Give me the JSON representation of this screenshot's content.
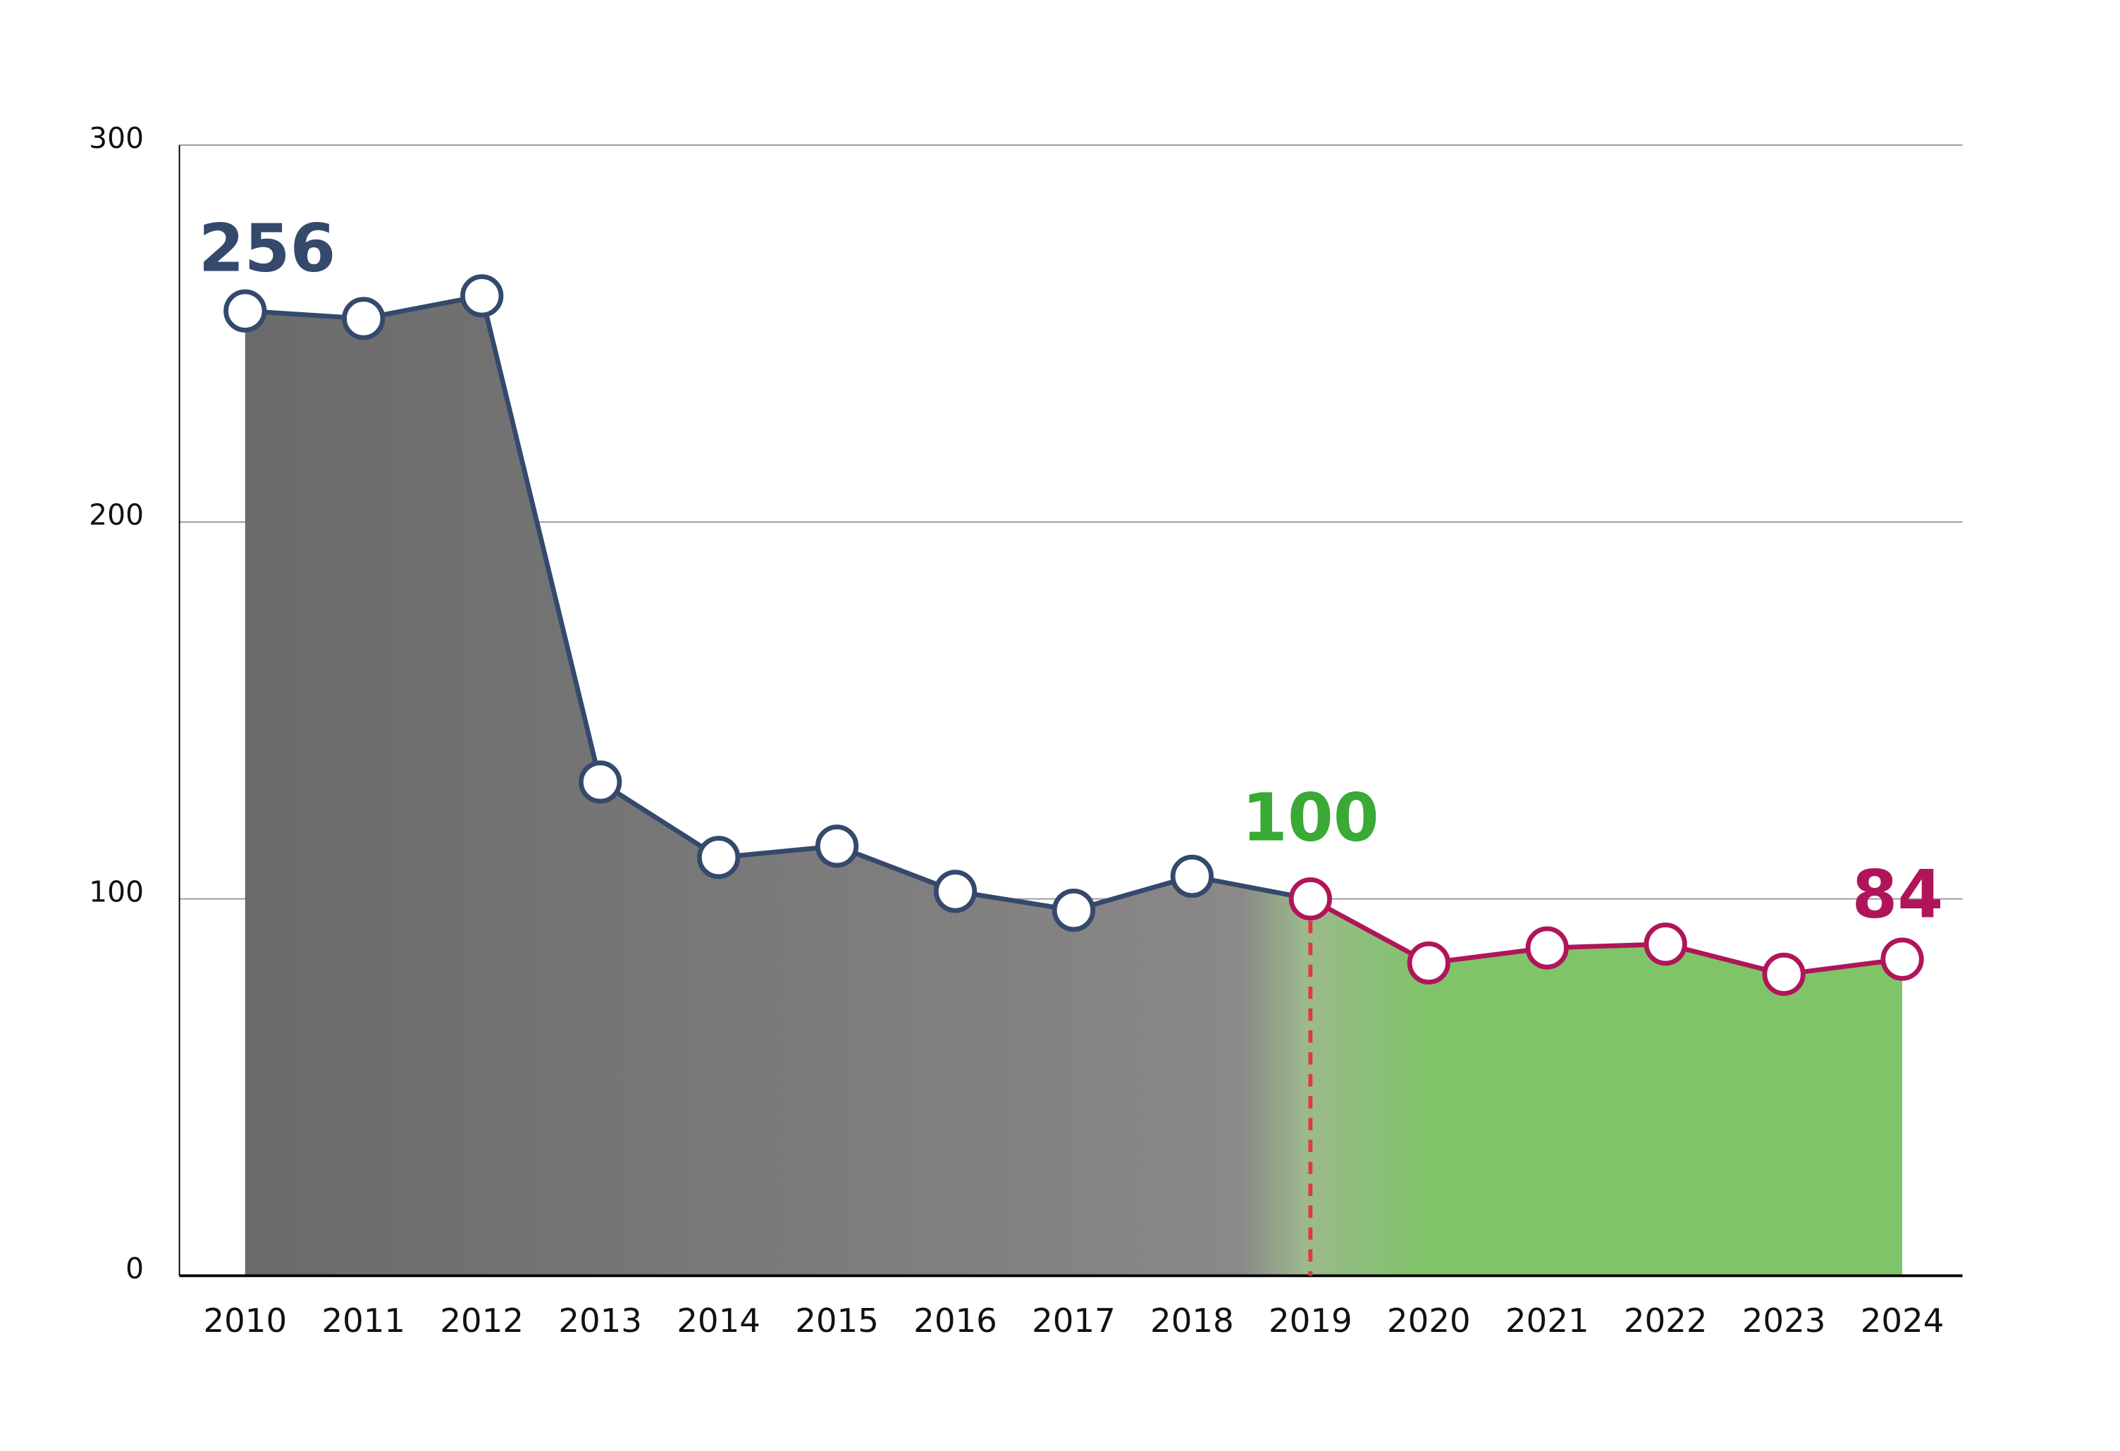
{
  "chart_data": {
    "type": "area",
    "title": "",
    "xlabel": "",
    "ylabel": "",
    "categories": [
      "2010",
      "2011",
      "2012",
      "2013",
      "2014",
      "2015",
      "2016",
      "2017",
      "2018",
      "2019",
      "2020",
      "2021",
      "2022",
      "2023",
      "2024"
    ],
    "values": [
      256,
      254,
      260,
      131,
      111,
      114,
      102,
      97,
      106,
      100,
      83,
      87,
      88,
      80,
      84
    ],
    "ylim": [
      0,
      300
    ],
    "yticks": [
      "0",
      "100",
      "200",
      "300"
    ],
    "grid": true,
    "annotations": [
      {
        "text": "256",
        "category": "2010",
        "color": "#34496b"
      },
      {
        "text": "100",
        "category": "2019",
        "color": "#3aa935"
      },
      {
        "text": "84",
        "category": "2024",
        "color": "#b0155a"
      }
    ],
    "marker_category": "2019",
    "colors": {
      "line_past": "#34496b",
      "line_recent": "#b0155a",
      "fill_past_start": "#6a6a6a",
      "fill_past_end": "#8a8888",
      "fill_recent": "#80c46a",
      "marker_line": "#e03a3a",
      "grid": "#999999",
      "axis": "#000000"
    }
  }
}
